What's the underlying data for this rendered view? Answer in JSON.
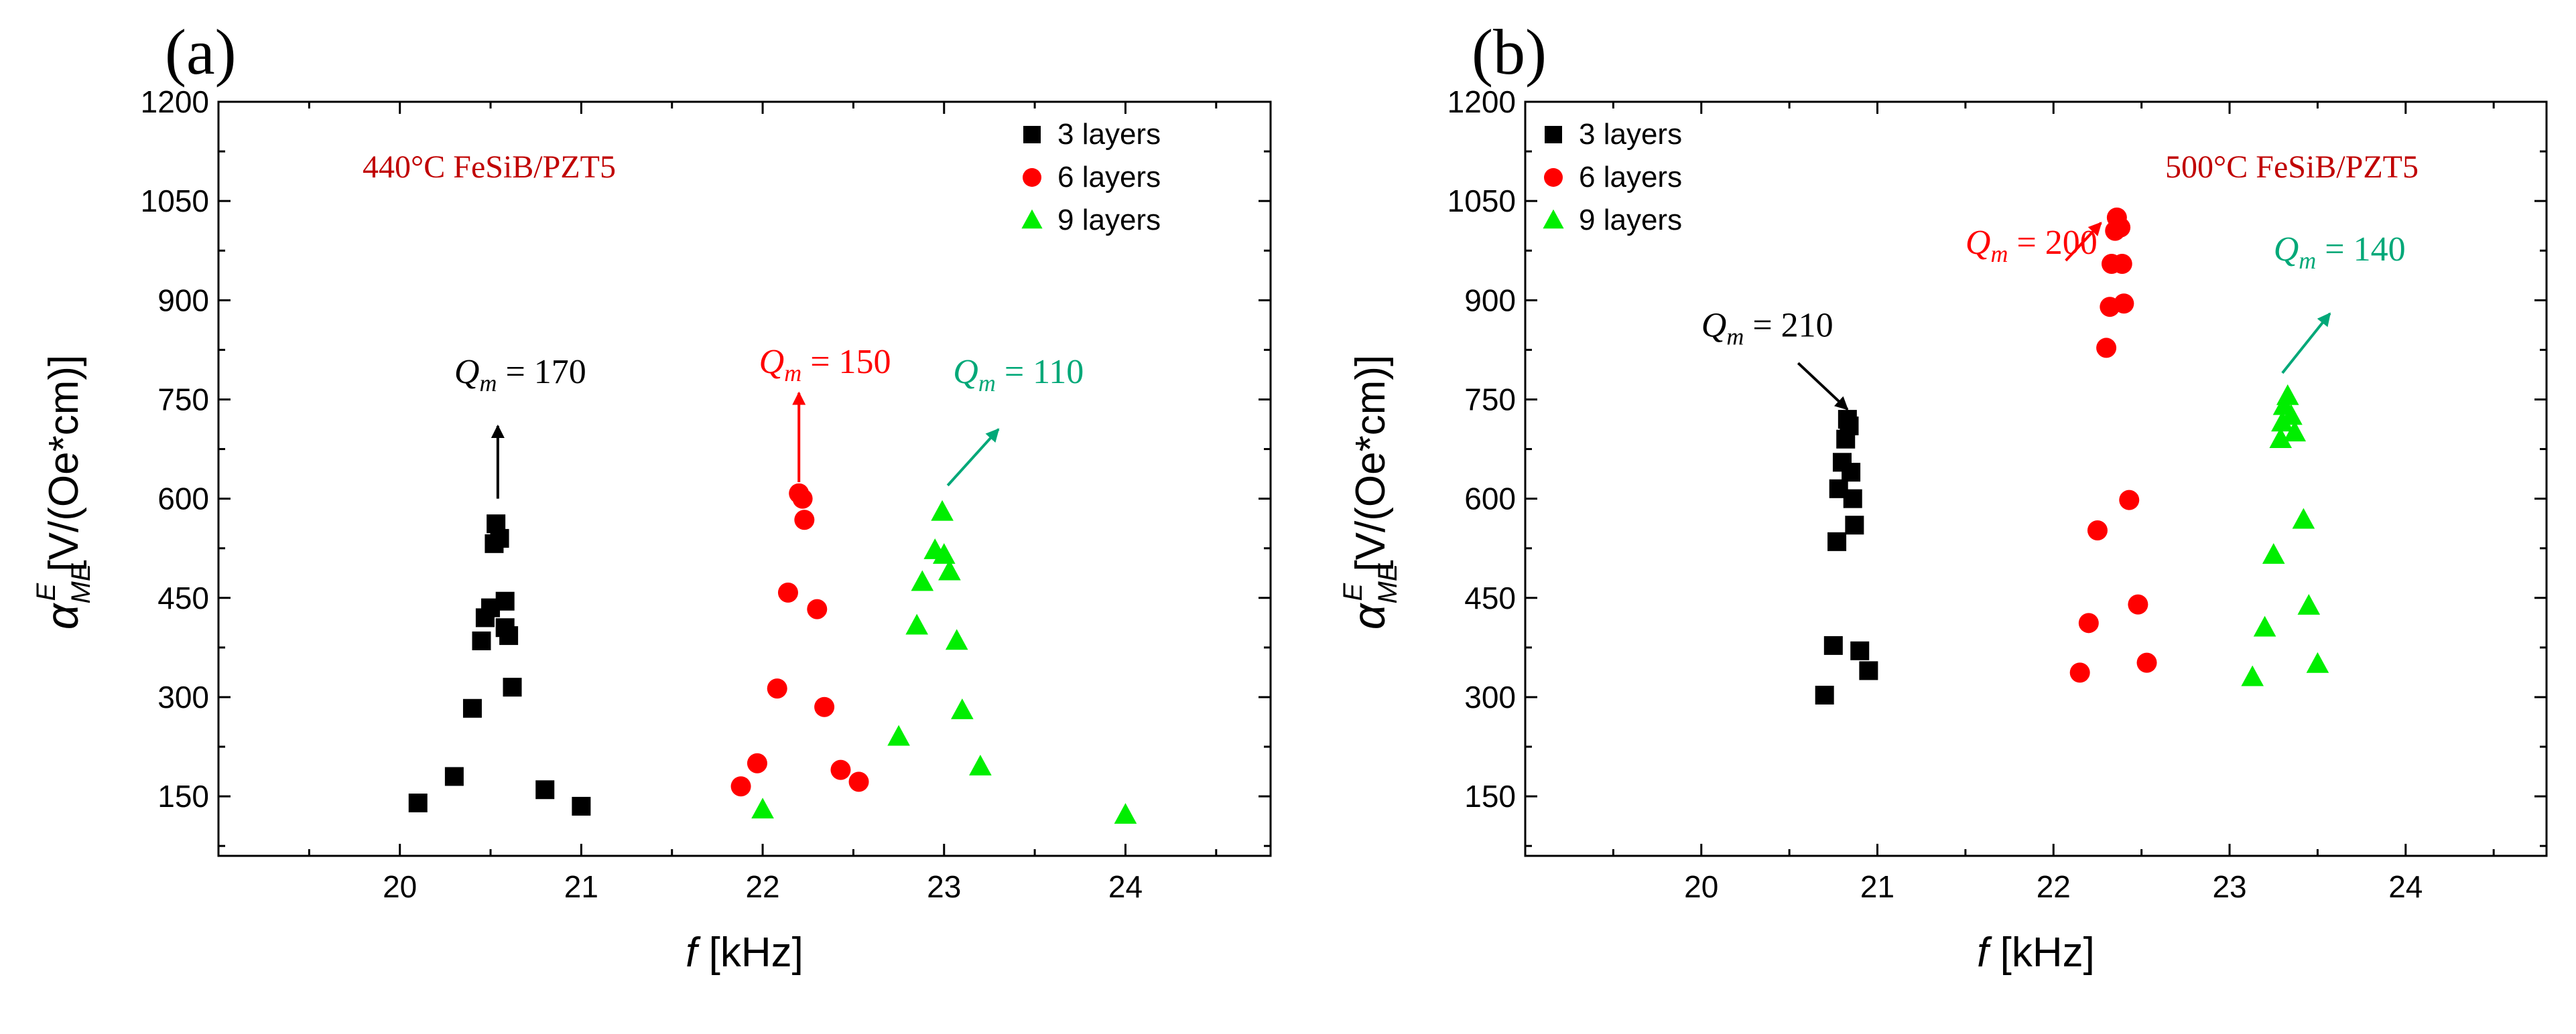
{
  "chart_data": [
    {
      "type": "scatter",
      "panel_label": "(a)",
      "title": "440°C FeSiB/PZT5",
      "xlabel": {
        "italic": "f",
        "rest": " [kHz]"
      },
      "ylabel": {
        "greek": "α",
        "sub": "ME",
        "sup": "E",
        "rest": " [V/(Oe*cm)]"
      },
      "xlim": [
        19.0,
        24.8
      ],
      "ylim": [
        60,
        1200
      ],
      "xticks": [
        20,
        21,
        22,
        23,
        24
      ],
      "xtick_labels": [
        "20",
        "21",
        "22",
        "23",
        "24"
      ],
      "yticks": [
        150,
        300,
        450,
        600,
        750,
        900,
        1050,
        1200
      ],
      "ytick_labels": [
        "150",
        "300",
        "450",
        "600",
        "750",
        "900",
        "1050",
        "1200"
      ],
      "legend_position": "top-right",
      "series": [
        {
          "name": "3 layers",
          "marker": "square",
          "color": "#000000",
          "points": [
            [
              20.1,
              140
            ],
            [
              20.3,
              180
            ],
            [
              20.4,
              283
            ],
            [
              20.45,
              385
            ],
            [
              20.47,
              420
            ],
            [
              20.5,
              435
            ],
            [
              20.52,
              532
            ],
            [
              20.53,
              562
            ],
            [
              20.55,
              540
            ],
            [
              20.58,
              445
            ],
            [
              20.58,
              405
            ],
            [
              20.6,
              393
            ],
            [
              20.62,
              315
            ],
            [
              20.8,
              160
            ],
            [
              21.0,
              135
            ]
          ]
        },
        {
          "name": "6 layers",
          "marker": "circle",
          "color": "#ff0000",
          "points": [
            [
              21.88,
              165
            ],
            [
              21.97,
              200
            ],
            [
              22.08,
              313
            ],
            [
              22.14,
              458
            ],
            [
              22.2,
              608
            ],
            [
              22.22,
              600
            ],
            [
              22.23,
              568
            ],
            [
              22.3,
              433
            ],
            [
              22.34,
              285
            ],
            [
              22.43,
              190
            ],
            [
              22.53,
              172
            ]
          ]
        },
        {
          "name": "9 layers",
          "marker": "triangle",
          "color": "#00ee00",
          "points": [
            [
              22.0,
              130
            ],
            [
              22.75,
              240
            ],
            [
              22.85,
              408
            ],
            [
              22.88,
              474
            ],
            [
              22.95,
              522
            ],
            [
              22.99,
              580
            ],
            [
              23.0,
              515
            ],
            [
              23.03,
              490
            ],
            [
              23.07,
              385
            ],
            [
              23.1,
              280
            ],
            [
              23.2,
              195
            ],
            [
              24.0,
              122
            ]
          ]
        }
      ],
      "annotations": [
        {
          "label": "Q",
          "sub": "m",
          "value": "170",
          "text": "Q m = 170",
          "color": "#000000",
          "x": 20.3,
          "y": 775,
          "arrow_from": [
            20.54,
            600
          ],
          "arrow_to": [
            20.54,
            710
          ]
        },
        {
          "label": "Q",
          "sub": "m",
          "value": "150",
          "text": "Q m = 150",
          "color": "#ff0000",
          "x": 21.98,
          "y": 790,
          "arrow_from": [
            22.2,
            625
          ],
          "arrow_to": [
            22.2,
            760
          ]
        },
        {
          "label": "Q",
          "sub": "m",
          "value": "110",
          "text": "Q m = 110",
          "color": "#00a878",
          "x": 23.05,
          "y": 775,
          "arrow_from": [
            23.02,
            620
          ],
          "arrow_to": [
            23.3,
            705
          ]
        }
      ]
    },
    {
      "type": "scatter",
      "panel_label": "(b)",
      "title": "500°C FeSiB/PZT5",
      "xlabel": {
        "italic": "f",
        "rest": " [kHz]"
      },
      "ylabel": {
        "greek": "α",
        "sub": "ME",
        "sup": "E",
        "rest": " [V/(Oe*cm)]"
      },
      "xlim": [
        19.0,
        24.8
      ],
      "ylim": [
        60,
        1200
      ],
      "xticks": [
        20,
        21,
        22,
        23,
        24
      ],
      "xtick_labels": [
        "20",
        "21",
        "22",
        "23",
        "24"
      ],
      "yticks": [
        150,
        300,
        450,
        600,
        750,
        900,
        1050,
        1200
      ],
      "ytick_labels": [
        "150",
        "300",
        "450",
        "600",
        "750",
        "900",
        "1050",
        "1200"
      ],
      "legend_position": "top-left",
      "series": [
        {
          "name": "3 layers",
          "marker": "square",
          "color": "#000000",
          "points": [
            [
              20.7,
              303
            ],
            [
              20.75,
              378
            ],
            [
              20.77,
              535
            ],
            [
              20.78,
              615
            ],
            [
              20.8,
              655
            ],
            [
              20.82,
              690
            ],
            [
              20.83,
              720
            ],
            [
              20.84,
              710
            ],
            [
              20.85,
              640
            ],
            [
              20.86,
              600
            ],
            [
              20.87,
              560
            ],
            [
              20.9,
              370
            ],
            [
              20.95,
              340
            ]
          ]
        },
        {
          "name": "6 layers",
          "marker": "circle",
          "color": "#ff0000",
          "points": [
            [
              22.15,
              337
            ],
            [
              22.2,
              412
            ],
            [
              22.25,
              552
            ],
            [
              22.3,
              828
            ],
            [
              22.32,
              890
            ],
            [
              22.33,
              955
            ],
            [
              22.35,
              1005
            ],
            [
              22.36,
              1025
            ],
            [
              22.38,
              1010
            ],
            [
              22.39,
              955
            ],
            [
              22.4,
              895
            ],
            [
              22.43,
              598
            ],
            [
              22.48,
              440
            ],
            [
              22.53,
              352
            ]
          ]
        },
        {
          "name": "9 layers",
          "marker": "triangle",
          "color": "#00ee00",
          "points": [
            [
              23.13,
              330
            ],
            [
              23.2,
              405
            ],
            [
              23.25,
              515
            ],
            [
              23.29,
              690
            ],
            [
              23.3,
              715
            ],
            [
              23.31,
              740
            ],
            [
              23.33,
              755
            ],
            [
              23.35,
              725
            ],
            [
              23.37,
              700
            ],
            [
              23.42,
              568
            ],
            [
              23.45,
              438
            ],
            [
              23.5,
              350
            ]
          ]
        }
      ],
      "annotations": [
        {
          "label": "Q",
          "sub": "m",
          "value": "200",
          "text": "Q m = 200",
          "color": "#ff0000",
          "x": 21.5,
          "y": 970,
          "arrow_from": [
            22.07,
            960
          ],
          "arrow_to": [
            22.27,
            1017
          ]
        },
        {
          "label": "Q",
          "sub": "m",
          "value": "210",
          "text": "Q m = 210",
          "color": "#000000",
          "x": 20.0,
          "y": 845,
          "arrow_from": [
            20.55,
            805
          ],
          "arrow_to": [
            20.83,
            735
          ]
        },
        {
          "label": "Q",
          "sub": "m",
          "value": "140",
          "text": "Q m = 140",
          "color": "#00a878",
          "x": 23.25,
          "y": 960,
          "arrow_from": [
            23.3,
            790
          ],
          "arrow_to": [
            23.57,
            880
          ]
        }
      ]
    }
  ]
}
